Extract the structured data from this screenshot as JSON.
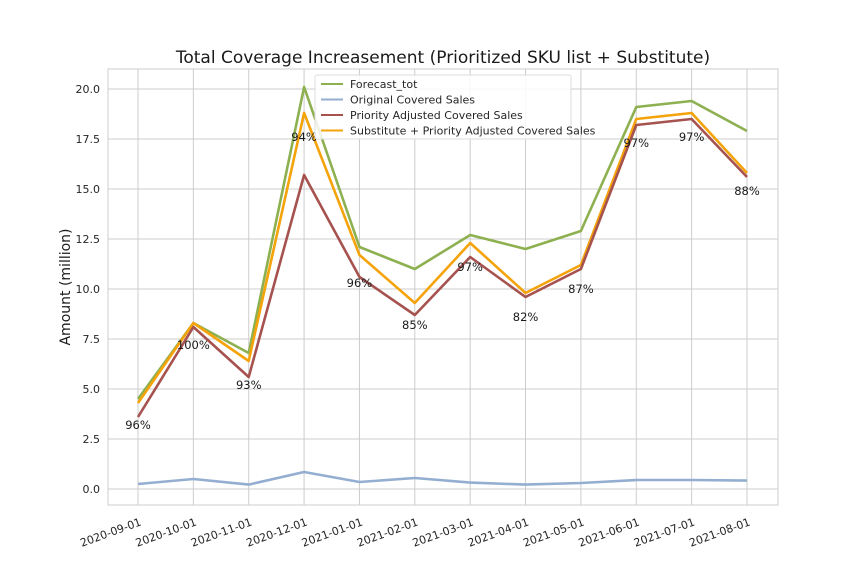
{
  "chart_data": {
    "type": "line",
    "title": "Total Coverage Increasement (Prioritized SKU list + Substitute)",
    "xlabel": "",
    "ylabel": "Amount (million)",
    "ylim": [
      -0.8,
      21.0
    ],
    "yticks": [
      "0.0",
      "2.5",
      "5.0",
      "7.5",
      "10.0",
      "12.5",
      "15.0",
      "17.5",
      "20.0"
    ],
    "categories": [
      "2020-09-01",
      "2020-10-01",
      "2020-11-01",
      "2020-12-01",
      "2021-01-01",
      "2021-02-01",
      "2021-03-01",
      "2021-04-01",
      "2021-05-01",
      "2021-06-01",
      "2021-07-01",
      "2021-08-01"
    ],
    "grid": true,
    "legend_position": "top-center",
    "series": [
      {
        "name": "Forecast_tot",
        "color": "#8db050",
        "values": [
          4.5,
          8.3,
          6.8,
          20.1,
          12.1,
          11.0,
          12.7,
          12.0,
          12.9,
          19.1,
          19.4,
          17.9
        ]
      },
      {
        "name": "Original Covered Sales",
        "color": "#94aed1",
        "values": [
          0.25,
          0.5,
          0.22,
          0.85,
          0.35,
          0.55,
          0.32,
          0.22,
          0.3,
          0.45,
          0.45,
          0.42
        ]
      },
      {
        "name": "Priority Adjusted Covered Sales",
        "color": "#a6524f",
        "values": [
          3.6,
          8.1,
          5.6,
          15.7,
          10.6,
          8.7,
          11.6,
          9.6,
          11.0,
          18.2,
          18.5,
          15.6
        ]
      },
      {
        "name": "Substitute + Priority Adjusted Covered Sales",
        "color": "#f4a30a",
        "values": [
          4.3,
          8.3,
          6.4,
          18.8,
          11.7,
          9.3,
          12.3,
          9.8,
          11.2,
          18.5,
          18.8,
          15.8
        ]
      }
    ],
    "data_labels": [
      "96%",
      "100%",
      "93%",
      "94%",
      "96%",
      "85%",
      "97%",
      "82%",
      "87%",
      "97%",
      "97%",
      "88%"
    ],
    "data_label_y": [
      3.2,
      7.2,
      5.2,
      17.6,
      10.3,
      8.2,
      11.1,
      8.6,
      10.0,
      17.3,
      17.6,
      14.9
    ]
  }
}
